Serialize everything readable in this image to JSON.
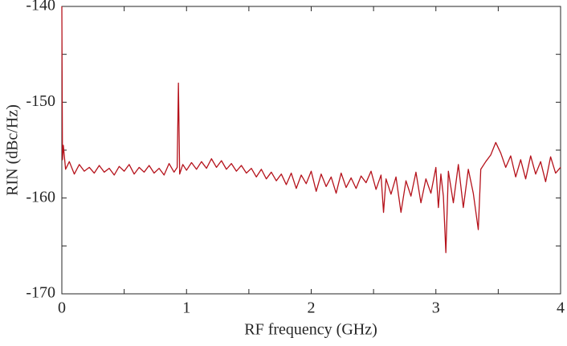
{
  "chart_data": {
    "type": "line",
    "x_label": "RF frequency (GHz)",
    "y_label": "RIN (dBc/Hz)",
    "xlim": [
      0,
      4
    ],
    "ylim": [
      -170,
      -140
    ],
    "xticks": [
      0,
      1,
      2,
      3,
      4
    ],
    "yticks": [
      -170,
      -160,
      -150,
      -140
    ],
    "xticks_minor": [
      0.5,
      1.5,
      2.5,
      3.5
    ],
    "yticks_minor": [
      -165,
      -155,
      -145
    ],
    "grid": false,
    "series": [
      {
        "color": "#b5121b",
        "x": [
          0,
          0.005,
          0.012,
          0.03,
          0.06,
          0.1,
          0.14,
          0.18,
          0.22,
          0.26,
          0.3,
          0.34,
          0.38,
          0.42,
          0.46,
          0.5,
          0.54,
          0.58,
          0.62,
          0.66,
          0.7,
          0.74,
          0.78,
          0.82,
          0.86,
          0.9,
          0.925,
          0.935,
          0.945,
          0.97,
          1.0,
          1.04,
          1.08,
          1.12,
          1.16,
          1.2,
          1.24,
          1.28,
          1.32,
          1.36,
          1.4,
          1.44,
          1.48,
          1.52,
          1.56,
          1.6,
          1.64,
          1.68,
          1.72,
          1.76,
          1.8,
          1.84,
          1.88,
          1.92,
          1.96,
          2.0,
          2.04,
          2.08,
          2.12,
          2.16,
          2.2,
          2.24,
          2.28,
          2.32,
          2.36,
          2.4,
          2.44,
          2.48,
          2.52,
          2.56,
          2.58,
          2.6,
          2.64,
          2.68,
          2.72,
          2.76,
          2.8,
          2.84,
          2.88,
          2.92,
          2.96,
          3.0,
          3.02,
          3.04,
          3.06,
          3.08,
          3.1,
          3.14,
          3.18,
          3.22,
          3.26,
          3.3,
          3.34,
          3.36,
          3.4,
          3.44,
          3.48,
          3.52,
          3.56,
          3.6,
          3.64,
          3.68,
          3.72,
          3.76,
          3.8,
          3.84,
          3.88,
          3.92,
          3.96,
          4.0
        ],
        "values": [
          -140,
          -156,
          -154.5,
          -157,
          -156.2,
          -157.5,
          -156.5,
          -157.2,
          -156.8,
          -157.4,
          -156.6,
          -157.3,
          -156.9,
          -157.6,
          -156.7,
          -157.2,
          -156.5,
          -157.5,
          -156.8,
          -157.3,
          -156.6,
          -157.4,
          -156.9,
          -157.6,
          -156.4,
          -157.3,
          -156.8,
          -148,
          -157.5,
          -156.5,
          -157.1,
          -156.3,
          -157.0,
          -156.2,
          -156.9,
          -155.9,
          -156.8,
          -156.1,
          -157.0,
          -156.4,
          -157.2,
          -156.6,
          -157.4,
          -156.9,
          -157.8,
          -157.0,
          -158.0,
          -157.3,
          -158.2,
          -157.5,
          -158.6,
          -157.4,
          -159.0,
          -157.6,
          -158.5,
          -157.2,
          -159.3,
          -157.5,
          -158.8,
          -157.8,
          -159.5,
          -157.4,
          -158.9,
          -157.9,
          -159.0,
          -157.7,
          -158.4,
          -157.2,
          -159.1,
          -157.6,
          -161.5,
          -158.0,
          -159.6,
          -157.8,
          -161.5,
          -158.2,
          -159.8,
          -157.3,
          -160.5,
          -158.0,
          -159.5,
          -156.8,
          -161.0,
          -157.5,
          -159.8,
          -165.7,
          -157.2,
          -160.5,
          -156.5,
          -161.0,
          -157.0,
          -159.5,
          -163.3,
          -157.0,
          -156.2,
          -155.5,
          -154.2,
          -155.3,
          -156.8,
          -155.6,
          -157.8,
          -156.0,
          -158.0,
          -155.6,
          -157.5,
          -156.2,
          -158.3,
          -155.7,
          -157.4,
          -156.8
        ]
      }
    ]
  }
}
